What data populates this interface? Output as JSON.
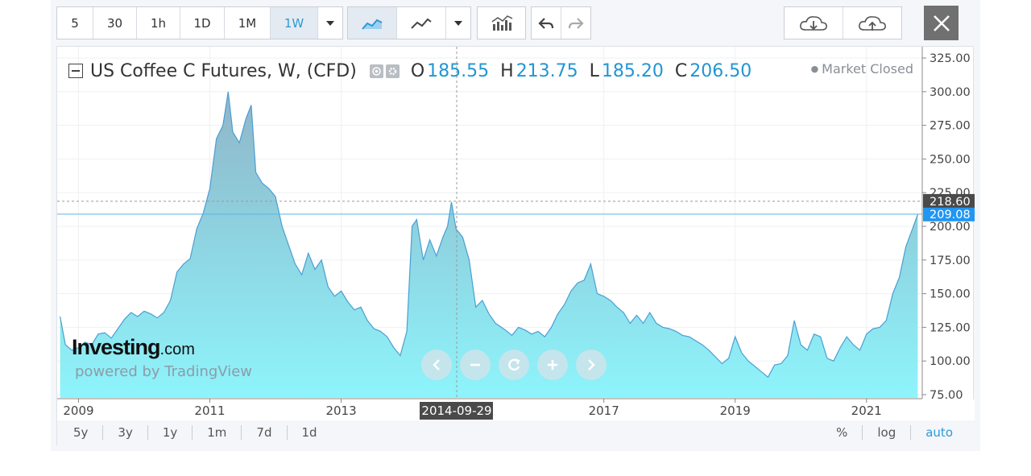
{
  "toolbar": {
    "intervals": [
      "5",
      "30",
      "1h",
      "1D",
      "1M",
      "1W"
    ],
    "active_interval": "1W"
  },
  "legend": {
    "title": "US Coffee C Futures, W, (CFD)",
    "open_key": "O",
    "open": "185.55",
    "high_key": "H",
    "high": "213.75",
    "low_key": "L",
    "low": "185.20",
    "close_key": "C",
    "close": "206.50",
    "status": "Market Closed"
  },
  "watermark": {
    "logo_main": "Investing",
    "logo_suffix": ".com",
    "powered": "powered by TradingView"
  },
  "crosshair": {
    "date_label": "2014-09-29",
    "price_label": "218.60"
  },
  "last_price_label": "209.08",
  "range_buttons": [
    "5y",
    "3y",
    "1y",
    "1m",
    "7d",
    "1d"
  ],
  "scale_buttons": [
    "%",
    "log",
    "auto"
  ],
  "active_scale": "auto",
  "colors": {
    "area_fill_top": "#8fb5c8",
    "area_fill_bottom": "#8ef4fb",
    "line": "#4a9fd3",
    "price_tag": "#2196f3",
    "crosshair_tag": "#4a4a4a"
  },
  "chart_data": {
    "type": "area",
    "x_unit": "year",
    "x_ticks": [
      "2009",
      "2011",
      "2013",
      "2017",
      "2019",
      "2021"
    ],
    "y_ticks": [
      "75.00",
      "100.00",
      "125.00",
      "150.00",
      "175.00",
      "200.00",
      "225.00",
      "250.00",
      "275.00",
      "300.00",
      "325.00"
    ],
    "ylim": [
      75,
      325
    ],
    "xlim": [
      2008.7,
      2021.8
    ],
    "series": [
      {
        "points": [
          [
            2008.72,
            133
          ],
          [
            2008.8,
            112
          ],
          [
            2008.9,
            108
          ],
          [
            2009.0,
            110
          ],
          [
            2009.1,
            114
          ],
          [
            2009.2,
            112
          ],
          [
            2009.3,
            120
          ],
          [
            2009.4,
            121
          ],
          [
            2009.5,
            117
          ],
          [
            2009.6,
            124
          ],
          [
            2009.7,
            131
          ],
          [
            2009.8,
            136
          ],
          [
            2009.9,
            133
          ],
          [
            2010.0,
            137
          ],
          [
            2010.1,
            135
          ],
          [
            2010.2,
            132
          ],
          [
            2010.3,
            136
          ],
          [
            2010.4,
            145
          ],
          [
            2010.5,
            166
          ],
          [
            2010.6,
            172
          ],
          [
            2010.7,
            176
          ],
          [
            2010.8,
            198
          ],
          [
            2010.9,
            210
          ],
          [
            2011.0,
            228
          ],
          [
            2011.1,
            265
          ],
          [
            2011.2,
            275
          ],
          [
            2011.28,
            300
          ],
          [
            2011.35,
            270
          ],
          [
            2011.45,
            262
          ],
          [
            2011.55,
            280
          ],
          [
            2011.63,
            290
          ],
          [
            2011.7,
            240
          ],
          [
            2011.8,
            232
          ],
          [
            2011.9,
            228
          ],
          [
            2012.0,
            222
          ],
          [
            2012.1,
            200
          ],
          [
            2012.2,
            186
          ],
          [
            2012.3,
            172
          ],
          [
            2012.4,
            164
          ],
          [
            2012.5,
            180
          ],
          [
            2012.6,
            168
          ],
          [
            2012.7,
            175
          ],
          [
            2012.8,
            155
          ],
          [
            2012.9,
            148
          ],
          [
            2013.0,
            152
          ],
          [
            2013.1,
            144
          ],
          [
            2013.2,
            138
          ],
          [
            2013.3,
            140
          ],
          [
            2013.4,
            130
          ],
          [
            2013.5,
            124
          ],
          [
            2013.6,
            122
          ],
          [
            2013.7,
            118
          ],
          [
            2013.8,
            110
          ],
          [
            2013.9,
            104
          ],
          [
            2014.0,
            122
          ],
          [
            2014.08,
            200
          ],
          [
            2014.15,
            205
          ],
          [
            2014.25,
            175
          ],
          [
            2014.35,
            190
          ],
          [
            2014.45,
            178
          ],
          [
            2014.55,
            192
          ],
          [
            2014.62,
            200
          ],
          [
            2014.68,
            218
          ],
          [
            2014.75,
            198
          ],
          [
            2014.85,
            192
          ],
          [
            2014.95,
            175
          ],
          [
            2015.05,
            140
          ],
          [
            2015.15,
            145
          ],
          [
            2015.25,
            135
          ],
          [
            2015.35,
            128
          ],
          [
            2015.5,
            123
          ],
          [
            2015.6,
            119
          ],
          [
            2015.7,
            125
          ],
          [
            2015.8,
            123
          ],
          [
            2015.9,
            120
          ],
          [
            2016.0,
            122
          ],
          [
            2016.1,
            118
          ],
          [
            2016.2,
            125
          ],
          [
            2016.3,
            135
          ],
          [
            2016.4,
            142
          ],
          [
            2016.5,
            152
          ],
          [
            2016.6,
            158
          ],
          [
            2016.7,
            160
          ],
          [
            2016.8,
            172
          ],
          [
            2016.9,
            150
          ],
          [
            2017.0,
            148
          ],
          [
            2017.1,
            145
          ],
          [
            2017.2,
            140
          ],
          [
            2017.3,
            136
          ],
          [
            2017.4,
            128
          ],
          [
            2017.5,
            134
          ],
          [
            2017.6,
            128
          ],
          [
            2017.7,
            136
          ],
          [
            2017.8,
            128
          ],
          [
            2017.9,
            125
          ],
          [
            2018.0,
            124
          ],
          [
            2018.1,
            122
          ],
          [
            2018.2,
            119
          ],
          [
            2018.3,
            118
          ],
          [
            2018.4,
            115
          ],
          [
            2018.5,
            112
          ],
          [
            2018.6,
            108
          ],
          [
            2018.7,
            103
          ],
          [
            2018.8,
            98
          ],
          [
            2018.9,
            102
          ],
          [
            2019.0,
            118
          ],
          [
            2019.1,
            106
          ],
          [
            2019.2,
            100
          ],
          [
            2019.3,
            96
          ],
          [
            2019.4,
            92
          ],
          [
            2019.5,
            88
          ],
          [
            2019.6,
            97
          ],
          [
            2019.7,
            98
          ],
          [
            2019.8,
            104
          ],
          [
            2019.9,
            130
          ],
          [
            2020.0,
            112
          ],
          [
            2020.1,
            108
          ],
          [
            2020.2,
            120
          ],
          [
            2020.3,
            118
          ],
          [
            2020.4,
            102
          ],
          [
            2020.5,
            100
          ],
          [
            2020.6,
            110
          ],
          [
            2020.7,
            118
          ],
          [
            2020.8,
            112
          ],
          [
            2020.9,
            108
          ],
          [
            2021.0,
            120
          ],
          [
            2021.1,
            124
          ],
          [
            2021.2,
            125
          ],
          [
            2021.3,
            130
          ],
          [
            2021.4,
            150
          ],
          [
            2021.5,
            162
          ],
          [
            2021.6,
            185
          ],
          [
            2021.7,
            198
          ],
          [
            2021.78,
            209
          ]
        ]
      }
    ]
  }
}
